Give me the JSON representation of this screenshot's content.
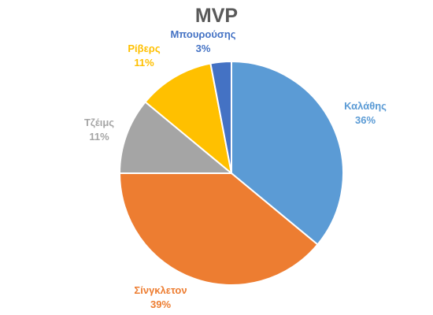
{
  "chart_data": {
    "type": "pie",
    "title": "MVP",
    "slices": [
      {
        "label": "Καλάθης",
        "value": 36,
        "value_label": "36%",
        "color": "#5b9bd5"
      },
      {
        "label": "Σίνγκλετον",
        "value": 39,
        "value_label": "39%",
        "color": "#ed7d31"
      },
      {
        "label": "Τζέιμς",
        "value": 11,
        "value_label": "11%",
        "color": "#a5a5a5"
      },
      {
        "label": "Ρίβερς",
        "value": 11,
        "value_label": "11%",
        "color": "#ffc000"
      },
      {
        "label": "Μπουρούσης",
        "value": 3,
        "value_label": "3%",
        "color": "#4472c4"
      }
    ],
    "legend": "none",
    "data_labels": "outside"
  }
}
